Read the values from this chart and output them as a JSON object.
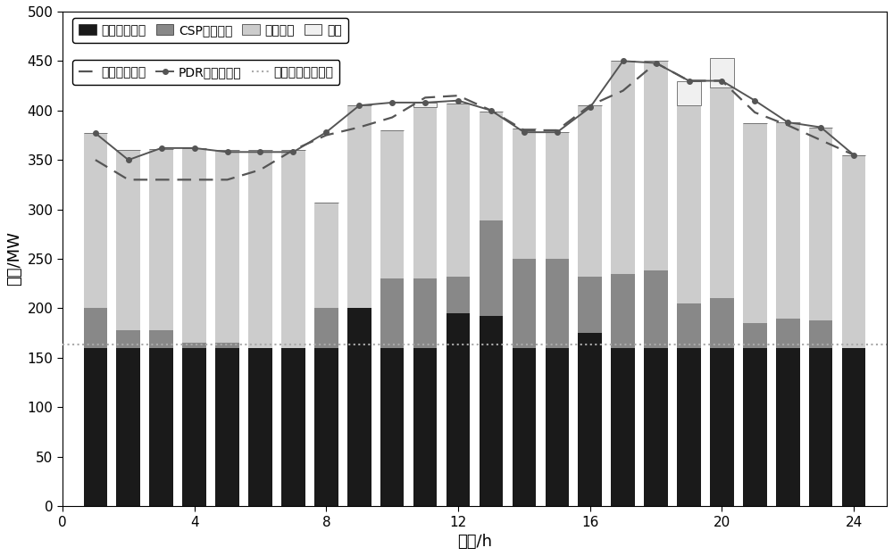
{
  "hours": [
    1,
    2,
    3,
    4,
    5,
    6,
    7,
    8,
    9,
    10,
    11,
    12,
    13,
    14,
    15,
    16,
    17,
    18,
    19,
    20,
    21,
    22,
    23,
    24
  ],
  "thermal": [
    160,
    160,
    160,
    160,
    160,
    160,
    160,
    160,
    200,
    160,
    160,
    195,
    192,
    160,
    160,
    175,
    160,
    160,
    160,
    160,
    160,
    160,
    160,
    160
  ],
  "csp": [
    40,
    18,
    18,
    5,
    5,
    0,
    0,
    40,
    0,
    70,
    70,
    37,
    97,
    90,
    90,
    57,
    75,
    78,
    45,
    50,
    25,
    30,
    28,
    0
  ],
  "wind": [
    177,
    182,
    183,
    197,
    195,
    200,
    200,
    107,
    205,
    150,
    173,
    175,
    110,
    132,
    128,
    173,
    215,
    212,
    200,
    213,
    202,
    198,
    195,
    195
  ],
  "curtailed": [
    0,
    0,
    0,
    0,
    0,
    0,
    0,
    0,
    0,
    0,
    5,
    0,
    0,
    0,
    0,
    0,
    0,
    0,
    25,
    30,
    0,
    0,
    0,
    0
  ],
  "original_load": [
    350,
    330,
    330,
    330,
    330,
    340,
    360,
    375,
    383,
    393,
    413,
    415,
    400,
    380,
    380,
    405,
    420,
    448,
    430,
    430,
    398,
    385,
    370,
    355
  ],
  "pdr_load": [
    377,
    350,
    362,
    362,
    358,
    358,
    358,
    378,
    405,
    408,
    408,
    410,
    400,
    378,
    378,
    403,
    450,
    448,
    430,
    430,
    410,
    388,
    383,
    355
  ],
  "thermal_min": 163,
  "bar_colors": {
    "thermal": "#1a1a1a",
    "csp": "#888888",
    "wind": "#cccccc",
    "curtailed": "#f0f0f0"
  },
  "line_styles": {
    "original_load_color": "#555555",
    "original_load_ls": "--",
    "pdr_load_color": "#555555",
    "pdr_load_ls": "-",
    "thermal_min_color": "#aaaaaa",
    "thermal_min_ls": ":"
  },
  "xlabel": "时间/h",
  "ylabel": "功率/MW",
  "ylim": [
    0,
    500
  ],
  "yticks": [
    0,
    50,
    100,
    150,
    200,
    250,
    300,
    350,
    400,
    450,
    500
  ],
  "xticks": [
    0,
    4,
    8,
    12,
    16,
    20,
    24
  ],
  "xlim": [
    0,
    25
  ],
  "bar_width": 0.72,
  "legend_bar_labels": [
    "火电机组出力",
    "CSP电站出力",
    "风电上网",
    "弃风"
  ],
  "legend_line_labels": [
    "原始负荷曲线",
    "PDR后负荷曲线",
    "火电机组最小出力"
  ]
}
